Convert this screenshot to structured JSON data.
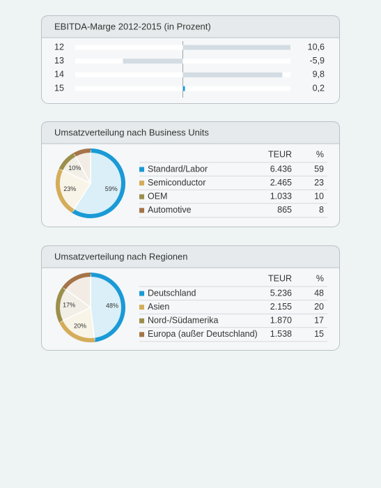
{
  "chart_data": [
    {
      "type": "bar",
      "title": "EBITDA-Marge 2012-2015 (in Prozent)",
      "categories": [
        "12",
        "13",
        "14",
        "15"
      ],
      "values": [
        10.6,
        -5.9,
        9.8,
        0.2
      ],
      "value_labels": [
        "10,6",
        "-5,9",
        "9,8",
        "0,2"
      ],
      "colors": [
        "#d3dce2",
        "#d3dce2",
        "#d3dce2",
        "#1a9ad6"
      ],
      "highlight": 3,
      "highlight_color": "#1a9ad6",
      "xlim": [
        -10.6,
        10.6
      ]
    },
    {
      "type": "pie",
      "title": "Umsatzverteilung nach Business Units",
      "column_headers": [
        "TEUR",
        "%"
      ],
      "categories": [
        "Standard/Labor",
        "Semiconductor",
        "OEM",
        "Automotive"
      ],
      "values": [
        59,
        23,
        10,
        8
      ],
      "value_labels": [
        "59%",
        "23%",
        "10%",
        null
      ],
      "amounts": [
        6436,
        2465,
        1033,
        865
      ],
      "amount_labels": [
        "6.436",
        "2.465",
        "1.033",
        "865"
      ],
      "colors": [
        "#1a9ad6",
        "#d4ad5a",
        "#9b8f4b",
        "#a57448"
      ],
      "highlight": 0,
      "highlight_color": "#1a9ad6"
    },
    {
      "type": "pie",
      "title": "Umsatzverteilung nach Regionen",
      "column_headers": [
        "TEUR",
        "%"
      ],
      "categories": [
        "Deutschland",
        "Asien",
        "Nord-/Südamerika",
        "Europa (außer Deutschland)"
      ],
      "values": [
        48,
        20,
        17,
        15
      ],
      "value_labels": [
        "48%",
        "20%",
        "17%",
        null
      ],
      "amounts": [
        5236,
        2155,
        1870,
        1538
      ],
      "amount_labels": [
        "5.236",
        "2.155",
        "1.870",
        "1.538"
      ],
      "colors": [
        "#1a9ad6",
        "#d4ad5a",
        "#9b8f4b",
        "#a57448"
      ],
      "highlight": 0,
      "highlight_color": "#1a9ad6"
    }
  ]
}
